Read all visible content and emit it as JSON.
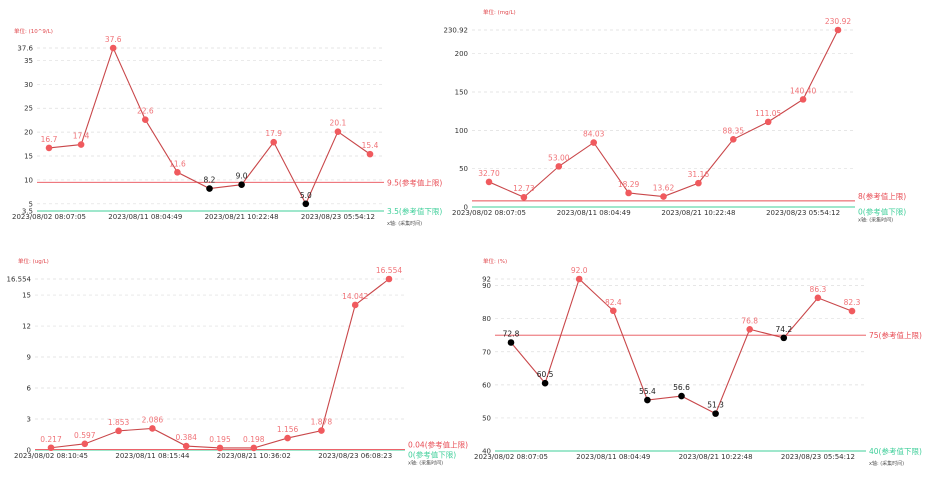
{
  "x_axis_name": "x轴: (采集时间)",
  "colors": {
    "line": "#c9474a",
    "high": "#f05a5e",
    "normal": "#000000",
    "upper_ref": "#e84d55",
    "lower_ref": "#3fcf9a",
    "grid": "#dddddd"
  },
  "chart_data": [
    {
      "type": "line",
      "unit": "单位: (10^9/L)",
      "x_ticks": [
        "2023/08/02 08:07:05",
        "2023/08/11 08:04:49",
        "2023/08/21 10:22:48",
        "2023/08/23 05:54:12"
      ],
      "values": [
        16.7,
        17.4,
        37.6,
        22.6,
        11.6,
        8.2,
        9.0,
        17.9,
        5.0,
        20.1,
        15.4
      ],
      "value_labels": [
        "16.7",
        "17.4",
        "37.6",
        "22.6",
        "11.6",
        "8.2",
        "9.0",
        "17.9",
        "5.0",
        "20.1",
        "15.4"
      ],
      "y_ticks": [
        "3.5",
        "5",
        "10",
        "15",
        "20",
        "25",
        "30",
        "35",
        "37.6"
      ],
      "ylim": [
        3.5,
        37.6
      ],
      "upper_ref": {
        "value": 9.5,
        "label": "9.5(参考值上限)"
      },
      "lower_ref": {
        "value": 3.5,
        "label": "3.5(参考值下限)"
      },
      "grid": true
    },
    {
      "type": "line",
      "unit": "单位: (mg/L)",
      "x_ticks": [
        "2023/08/02 08:07:05",
        "2023/08/11 08:04:49",
        "2023/08/21 10:22:48",
        "2023/08/23 05:54:12"
      ],
      "values": [
        32.7,
        12.73,
        53.0,
        84.03,
        18.29,
        13.62,
        31.16,
        88.35,
        111.05,
        140.4,
        230.92
      ],
      "value_labels": [
        "32.70",
        "12.73",
        "53.00",
        "84.03",
        "18.29",
        "13.62",
        "31.16",
        "88.35",
        "111.05",
        "140.40",
        "230.92"
      ],
      "y_ticks": [
        "0",
        "50",
        "100",
        "150",
        "200",
        "230.92"
      ],
      "ylim": [
        0,
        230.92
      ],
      "upper_ref": {
        "value": 8,
        "label": "8(参考值上限)"
      },
      "lower_ref": {
        "value": 0,
        "label": "0(参考值下限)"
      },
      "grid": true
    },
    {
      "type": "line",
      "unit": "单位: (ug/L)",
      "x_ticks": [
        "2023/08/02 08:10:45",
        "2023/08/11 08:15:44",
        "2023/08/21 10:36:02",
        "2023/08/23 06:08:23"
      ],
      "values": [
        0.217,
        0.597,
        1.853,
        2.086,
        0.384,
        0.195,
        0.198,
        1.156,
        1.878,
        14.042,
        16.554
      ],
      "value_labels": [
        "0.217",
        "0.597",
        "1.853",
        "2.086",
        "0.384",
        "0.195",
        "0.198",
        "1.156",
        "1.878",
        "14.042",
        "16.554"
      ],
      "y_ticks": [
        "0",
        "3",
        "6",
        "9",
        "12",
        "15",
        "16.554"
      ],
      "ylim": [
        0,
        16.554
      ],
      "upper_ref": {
        "value": 0.04,
        "label": "0.04(参考值上限)"
      },
      "lower_ref": {
        "value": 0,
        "label": "0(参考值下限)"
      },
      "grid": true
    },
    {
      "type": "line",
      "unit": "单位: (%)",
      "x_ticks": [
        "2023/08/02 08:07:05",
        "2023/08/11 08:04:49",
        "2023/08/21 10:22:48",
        "2023/08/23 05:54:12"
      ],
      "values": [
        72.8,
        60.5,
        92.0,
        82.4,
        55.4,
        56.6,
        51.3,
        76.8,
        74.2,
        86.3,
        82.3
      ],
      "value_labels": [
        "72.8",
        "60.5",
        "92.0",
        "82.4",
        "55.4",
        "56.6",
        "51.3",
        "76.8",
        "74.2",
        "86.3",
        "82.3"
      ],
      "y_ticks": [
        "40",
        "50",
        "60",
        "70",
        "80",
        "90",
        "92"
      ],
      "ylim": [
        40,
        92
      ],
      "upper_ref": {
        "value": 75,
        "label": "75(参考值上限)"
      },
      "lower_ref": {
        "value": 40,
        "label": "40(参考值下限)"
      },
      "grid": true
    }
  ]
}
